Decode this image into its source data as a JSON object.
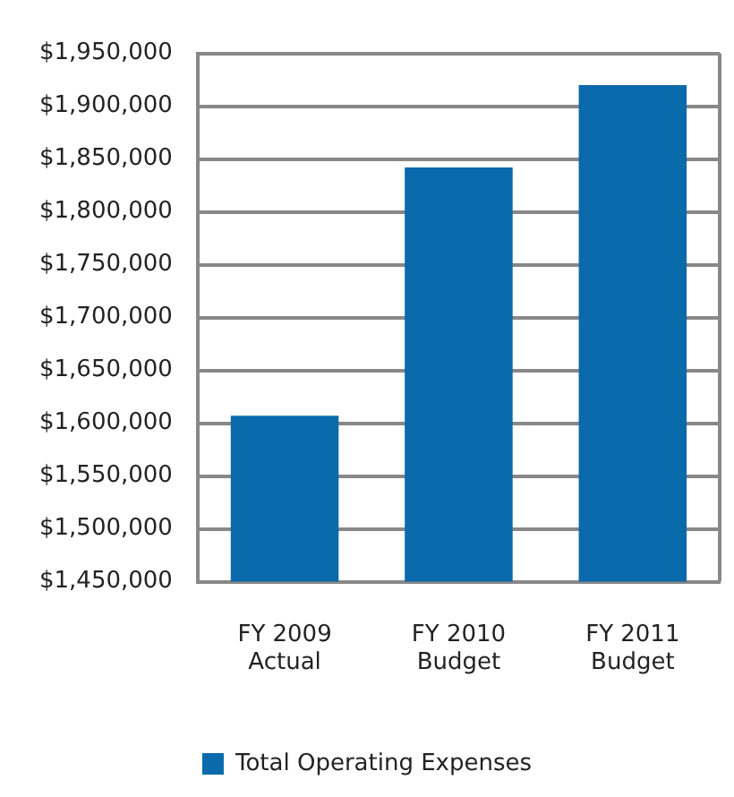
{
  "chart_data": {
    "type": "bar",
    "categories": [
      "FY 2009\nActual",
      "FY 2010\nBudget",
      "FY 2011\nBudget"
    ],
    "series": [
      {
        "name": "Total Operating Expenses",
        "color": "#0a6aac",
        "values": [
          1607000,
          1842000,
          1920000
        ]
      }
    ],
    "ylim": [
      1450000,
      1950000
    ],
    "yticks": [
      {
        "value": 1450000,
        "label": "$1,450,000"
      },
      {
        "value": 1500000,
        "label": "$1,500,000"
      },
      {
        "value": 1550000,
        "label": "$1,550,000"
      },
      {
        "value": 1600000,
        "label": "$1,600,000"
      },
      {
        "value": 1650000,
        "label": "$1,650,000"
      },
      {
        "value": 1700000,
        "label": "$1,700,000"
      },
      {
        "value": 1750000,
        "label": "$1,750,000"
      },
      {
        "value": 1800000,
        "label": "$1,800,000"
      },
      {
        "value": 1850000,
        "label": "$1,850,000"
      },
      {
        "value": 1900000,
        "label": "$1,900,000"
      },
      {
        "value": 1950000,
        "label": "$1,950,000"
      }
    ],
    "grid": "y",
    "legend": "bottom"
  }
}
